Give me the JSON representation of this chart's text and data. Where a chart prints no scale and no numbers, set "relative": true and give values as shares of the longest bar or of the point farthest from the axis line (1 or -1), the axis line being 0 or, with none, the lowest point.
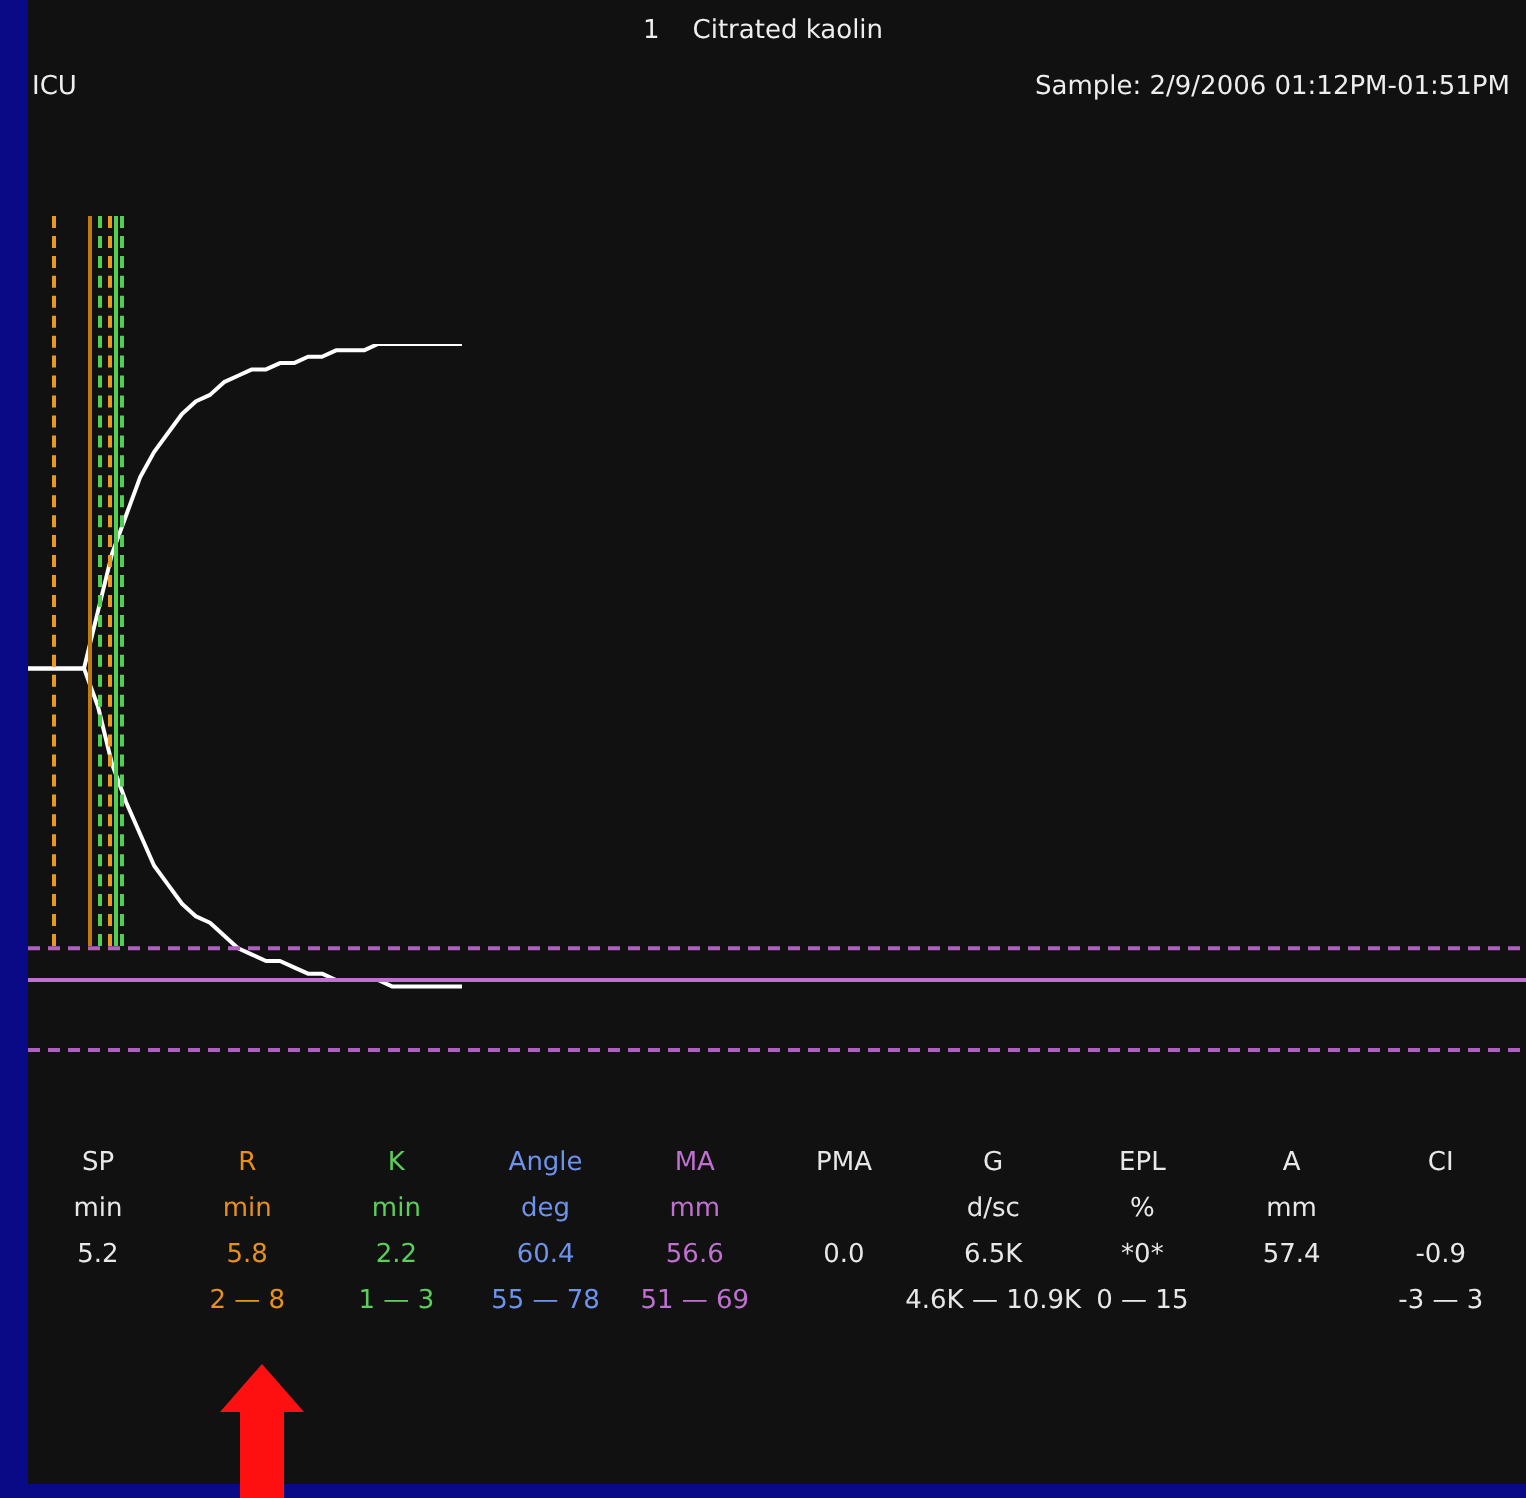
{
  "chart_data": {
    "type": "line",
    "title": "1    Citrated kaolin",
    "subtitle": "Sample: 2/9/2006 01:12PM-01:51PM",
    "annotations": [
      "ICU",
      "SP\nmin\n5.2\n",
      "R\nmin\n5.8\n2 — 8",
      "K\nmin\n2.2\n1 — 3",
      "Angle\ndeg\n60.4\n55 — 78",
      "MA\nmm\n56.6\n51 — 69",
      "PMA\n\n0.0\n",
      "G\nd/sc\n6.5K\n4.6K — 10.9K",
      "EPL\n%\n*0*\n0 — 15",
      "A\nmm\n57.4\n",
      "CI\n\n-0.9\n-3 — 3"
    ],
    "relative": true,
    "legend": false,
    "marker": "none",
    "line_style": "solid",
    "categories": [
      null,
      null,
      null,
      null,
      null,
      null,
      null,
      null,
      null,
      null,
      null,
      null,
      null,
      null,
      null,
      null,
      null,
      null,
      null,
      null,
      null,
      null,
      null,
      null,
      null,
      null,
      null,
      null,
      null,
      null,
      null,
      null,
      null,
      null,
      null,
      null,
      null,
      null,
      null,
      null,
      null,
      null,
      null,
      null,
      null,
      null,
      null,
      null,
      null,
      null,
      null,
      null,
      null,
      null,
      null,
      null,
      null,
      null,
      null,
      null,
      null,
      null,
      null,
      null,
      null,
      null,
      null,
      null,
      null,
      null,
      null,
      null,
      null,
      null,
      null,
      null,
      null,
      null,
      null,
      null,
      null,
      null,
      null,
      null,
      null,
      null,
      null,
      null,
      null,
      null,
      null,
      null,
      null,
      null,
      null,
      null,
      null,
      null,
      null,
      null,
      null,
      null,
      null,
      null,
      null,
      null,
      null,
      null
    ],
    "series": [
      {
        "color": "#ffffff",
        "values": [
          0.49,
          0.49,
          0.49,
          0.49,
          0.49,
          0.58,
          0.67,
          0.73,
          0.79,
          0.83,
          0.86,
          0.89,
          0.91,
          0.92,
          0.94,
          0.95,
          0.96,
          0.96,
          0.97,
          0.97,
          0.98,
          0.98,
          0.99,
          0.99,
          0.99,
          1,
          1,
          1,
          1,
          1,
          1,
          1,
          null,
          null,
          null,
          null,
          null,
          null,
          null,
          null,
          null,
          null,
          null,
          null,
          null,
          null,
          null,
          null,
          null,
          null,
          null,
          null,
          null,
          null,
          null,
          null,
          null,
          null,
          null,
          null,
          null,
          null,
          null,
          null,
          null,
          null,
          null,
          null,
          null,
          null,
          null,
          null,
          null,
          null,
          null,
          null,
          null,
          null,
          null,
          null,
          null,
          null,
          null,
          null,
          null,
          null,
          null,
          null,
          null,
          null,
          null,
          null,
          null,
          null,
          null,
          null,
          null,
          null,
          null,
          null,
          null,
          null,
          null,
          null,
          null,
          null,
          null,
          null
        ]
      },
      {
        "color": "#ffffff",
        "values": [
          0.49,
          0.49,
          0.49,
          0.49,
          0.49,
          0.43,
          0.34,
          0.28,
          0.23,
          0.18,
          0.15,
          0.12,
          0.1,
          0.09,
          0.07,
          0.05,
          0.04,
          0.03,
          0.03,
          0.02,
          0.01,
          0.01,
          0,
          0,
          0,
          0,
          -0.01,
          -0.01,
          -0.01,
          -0.01,
          -0.01,
          -0.01,
          null,
          null,
          null,
          null,
          null,
          null,
          null,
          null,
          null,
          null,
          null,
          null,
          null,
          null,
          null,
          null,
          null,
          null,
          null,
          null,
          null,
          null,
          null,
          null,
          null,
          null,
          null,
          null,
          null,
          null,
          null,
          null,
          null,
          null,
          null,
          null,
          null,
          null,
          null,
          null,
          null,
          null,
          null,
          null,
          null,
          null,
          null,
          null,
          null,
          null,
          null,
          null,
          null,
          null,
          null,
          null,
          null,
          null,
          null,
          null,
          null,
          null,
          null,
          null,
          null,
          null,
          null,
          null,
          null,
          null,
          null,
          null,
          null,
          null,
          null,
          null
        ]
      }
    ],
    "ref_lines": [
      {
        "axis": "y",
        "value": 0.05,
        "color": "#b060c0",
        "line_style": "dashed"
      },
      {
        "axis": "y",
        "value": 0,
        "color": "#c070d0",
        "line_style": "solid"
      },
      {
        "axis": "y",
        "value": -0.11,
        "color": "#b060c0",
        "line_style": "dashed"
      }
    ]
  }
}
